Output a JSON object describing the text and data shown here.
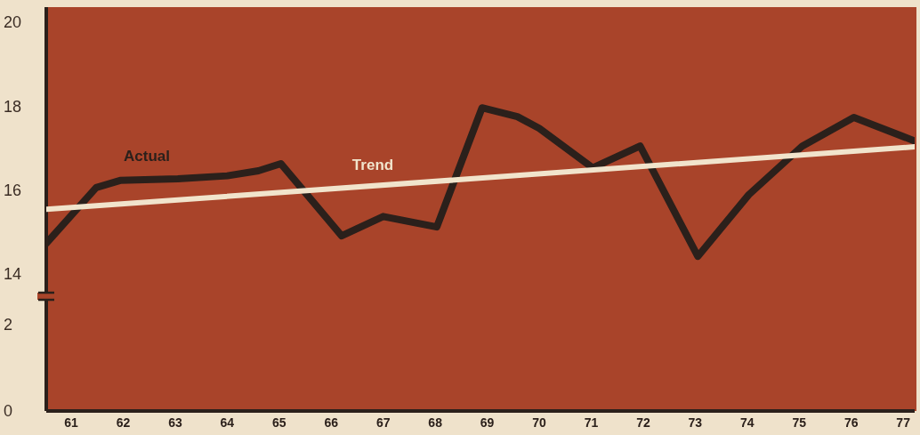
{
  "chart_data": [
    {
      "type": "line",
      "ylim": [
        14,
        20.36
      ],
      "yticks": [
        14,
        16,
        18,
        20
      ],
      "xlim": [
        60.52,
        77.22
      ],
      "xticks": [
        61,
        62,
        63,
        64,
        65,
        66,
        67,
        68,
        69,
        70,
        71,
        72,
        73,
        74,
        75,
        76,
        77
      ],
      "tick_labels": "y",
      "legend": false,
      "marker": "none",
      "line_style": "solid",
      "series": [
        {
          "name": "Actual",
          "color": "#2b201b",
          "x": [
            60.52,
            61.48,
            61.94,
            63.05,
            64,
            64.6,
            65.03,
            66.2,
            67,
            68.03,
            68.9,
            69.58,
            70,
            71.03,
            71.94,
            73.05,
            74.03,
            75.06,
            76.05,
            77.22
          ],
          "values": [
            14.73,
            16.06,
            16.23,
            16.27,
            16.34,
            16.46,
            16.63,
            14.91,
            15.37,
            15.12,
            17.96,
            17.75,
            17.47,
            16.53,
            17.05,
            14.42,
            15.89,
            17.05,
            17.73,
            17.17
          ]
        },
        {
          "name": "Trend",
          "color": "#f1e4cc",
          "x": [
            60.52,
            77.22
          ],
          "values": [
            15.54,
            17.03
          ]
        }
      ]
    },
    {
      "type": "line",
      "ylim": [
        0,
        2
      ],
      "yticks": [
        0,
        2
      ],
      "xlim": [
        60.52,
        77.22
      ],
      "xticks": [
        61,
        62,
        63,
        64,
        65,
        66,
        67,
        68,
        69,
        70,
        71,
        72,
        73,
        74,
        75,
        76,
        77
      ]
    }
  ]
}
